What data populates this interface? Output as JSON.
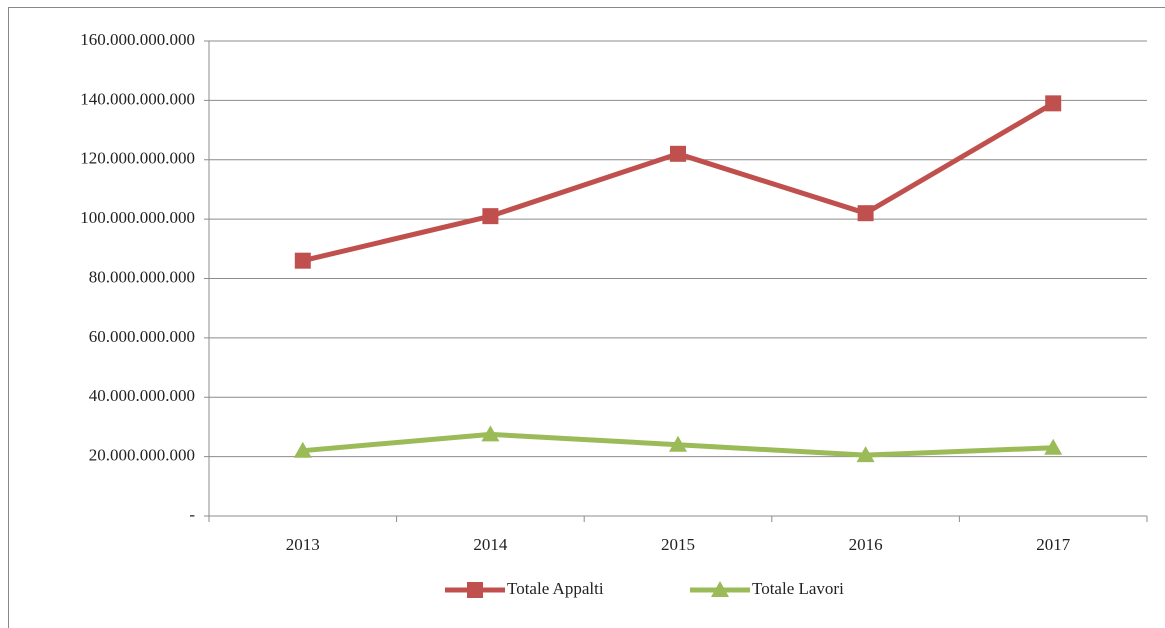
{
  "chart_data": {
    "type": "line",
    "categories": [
      "2013",
      "2014",
      "2015",
      "2016",
      "2017"
    ],
    "series": [
      {
        "name": "Totale Appalti",
        "color": "#c0504d",
        "marker": "square",
        "values": [
          86000000000,
          101000000000,
          122000000000,
          102000000000,
          139000000000
        ]
      },
      {
        "name": "Totale Lavori",
        "color": "#9bbb59",
        "marker": "triangle",
        "values": [
          22000000000,
          27500000000,
          24000000000,
          20500000000,
          23000000000
        ]
      }
    ],
    "ylim": [
      0,
      160000000000
    ],
    "yticks": [
      {
        "value": 0,
        "label": "-"
      },
      {
        "value": 20000000000,
        "label": "20.000.000.000"
      },
      {
        "value": 40000000000,
        "label": "40.000.000.000"
      },
      {
        "value": 60000000000,
        "label": "60.000.000.000"
      },
      {
        "value": 80000000000,
        "label": "80.000.000.000"
      },
      {
        "value": 100000000000,
        "label": "100.000.000.000"
      },
      {
        "value": 120000000000,
        "label": "120.000.000.000"
      },
      {
        "value": 140000000000,
        "label": "140.000.000.000"
      },
      {
        "value": 160000000000,
        "label": "160.000.000.000"
      }
    ],
    "grid": true,
    "legend": "bottom"
  }
}
